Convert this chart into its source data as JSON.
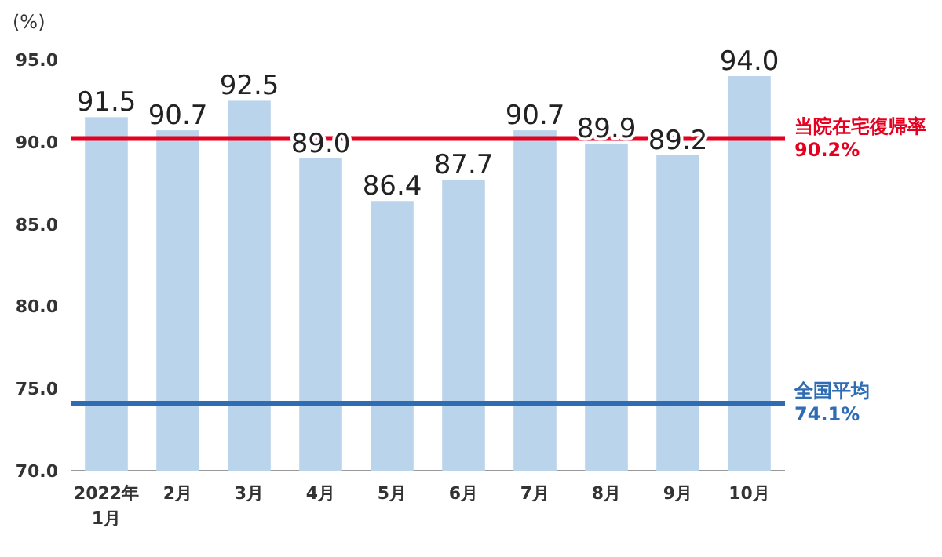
{
  "chart_data": {
    "type": "bar",
    "ylabel": "(%)",
    "categories": [
      "2022年\n1月",
      "2月",
      "3月",
      "4月",
      "5月",
      "6月",
      "7月",
      "8月",
      "9月",
      "10月"
    ],
    "values": [
      91.5,
      90.7,
      92.5,
      89.0,
      86.4,
      87.7,
      90.7,
      89.9,
      89.2,
      94.0
    ],
    "value_labels": [
      "91.5",
      "90.7",
      "92.5",
      "89.0",
      "86.4",
      "87.7",
      "90.7",
      "89.9",
      "89.2",
      "94.0"
    ],
    "color": "#bad4eb",
    "ylim": [
      70,
      95
    ],
    "yticks": [
      {
        "value": 70,
        "label": "70.0"
      },
      {
        "value": 75,
        "label": "75.0"
      },
      {
        "value": 80,
        "label": "80.0"
      },
      {
        "value": 85,
        "label": "85.0"
      },
      {
        "value": 90,
        "label": "90.0"
      },
      {
        "value": 95,
        "label": "95.0"
      }
    ],
    "ref_lines": [
      {
        "axis": "y",
        "value": 90.2,
        "label": "当院在宅復帰率\n90.2%",
        "color": "#e60020"
      },
      {
        "axis": "y",
        "value": 74.1,
        "label": "全国平均\n74.1%",
        "color": "#2e6db4"
      }
    ]
  }
}
